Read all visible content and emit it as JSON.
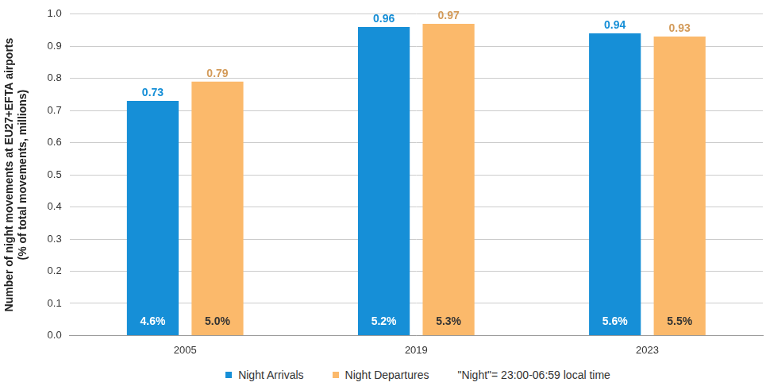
{
  "chart_data": {
    "type": "bar",
    "categories": [
      "2005",
      "2019",
      "2023"
    ],
    "series": [
      {
        "name": "Night Arrivals",
        "color": "#168fd7",
        "values": [
          0.73,
          0.96,
          0.94
        ],
        "shares": [
          4.6,
          5.2,
          5.6
        ],
        "share_labels": [
          "4.6%",
          "5.2%",
          "5.6%"
        ]
      },
      {
        "name": "Night Departures",
        "color": "#fbb96b",
        "values": [
          0.79,
          0.97,
          0.93
        ],
        "shares": [
          5.0,
          5.3,
          5.5
        ],
        "share_labels": [
          "5.0%",
          "5.3%",
          "5.5%"
        ]
      }
    ],
    "ylabel": "Number of night movements at EU27+EFTA airports\n(% of total movements, millions)",
    "note": "\"Night\"= 23:00-06:59 local time",
    "ylim": [
      0,
      1
    ],
    "yticks": [
      {
        "value": 0,
        "label": "0.0"
      },
      0.1,
      0.2,
      0.3,
      0.4,
      0.5,
      0.6,
      0.7,
      0.8,
      0.9,
      {
        "value": 1,
        "label": "1.0"
      }
    ],
    "grid": true,
    "legend": "bottom",
    "data_labels": true
  }
}
